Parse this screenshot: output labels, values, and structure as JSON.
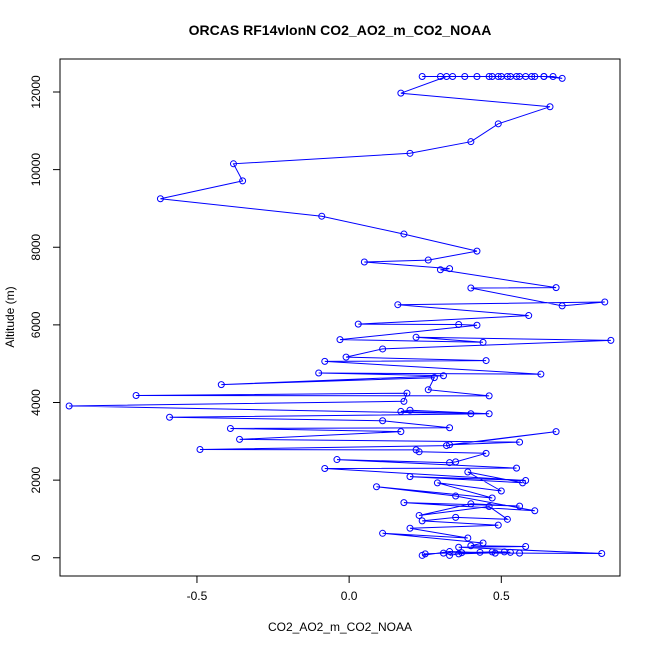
{
  "chart_data": {
    "type": "line",
    "title": "ORCAS RF14vlonN CO2_AO2_m_CO2_NOAA",
    "xlabel": "CO2_AO2_m_CO2_NOAA",
    "ylabel": "Altitude (m)",
    "xlim": [
      -0.95,
      0.89
    ],
    "ylim": [
      -470,
      12850
    ],
    "xticks": [
      -0.5,
      0.0,
      0.5
    ],
    "xtick_labels": [
      "-0.5",
      "0.0",
      "0.5"
    ],
    "yticks": [
      0,
      2000,
      4000,
      6000,
      8000,
      10000,
      12000
    ],
    "ytick_labels": [
      "0",
      "2000",
      "4000",
      "6000",
      "8000",
      "10000",
      "12000"
    ],
    "grid": false,
    "legend": "none",
    "colors": {
      "series": "#0000ff",
      "axes": "#000000"
    },
    "series": [
      {
        "points": [
          [
            0.24,
            12400
          ],
          [
            0.3,
            12400
          ],
          [
            0.34,
            12400
          ],
          [
            0.38,
            12400
          ],
          [
            0.42,
            12400
          ],
          [
            0.46,
            12400
          ],
          [
            0.49,
            12400
          ],
          [
            0.52,
            12400
          ],
          [
            0.55,
            12400
          ],
          [
            0.58,
            12400
          ],
          [
            0.61,
            12400
          ],
          [
            0.64,
            12400
          ],
          [
            0.67,
            12400
          ],
          [
            0.7,
            12350
          ],
          [
            0.64,
            12400
          ],
          [
            0.6,
            12400
          ],
          [
            0.56,
            12400
          ],
          [
            0.53,
            12400
          ],
          [
            0.5,
            12400
          ],
          [
            0.47,
            12400
          ],
          [
            0.32,
            12400
          ],
          [
            0.17,
            11970
          ],
          [
            0.66,
            11620
          ],
          [
            0.49,
            11180
          ],
          [
            0.4,
            10720
          ],
          [
            0.2,
            10420
          ],
          [
            -0.38,
            10150
          ],
          [
            -0.35,
            9710
          ],
          [
            -0.62,
            9250
          ],
          [
            -0.09,
            8800
          ],
          [
            0.18,
            8340
          ],
          [
            0.42,
            7900
          ],
          [
            0.26,
            7670
          ],
          [
            0.05,
            7620
          ],
          [
            0.33,
            7450
          ],
          [
            0.3,
            7420
          ],
          [
            0.68,
            6960
          ],
          [
            0.4,
            6950
          ],
          [
            0.7,
            6490
          ],
          [
            0.84,
            6590
          ],
          [
            0.16,
            6520
          ],
          [
            0.59,
            6240
          ],
          [
            0.03,
            6020
          ],
          [
            0.36,
            6010
          ],
          [
            0.42,
            5990
          ],
          [
            -0.03,
            5620
          ],
          [
            0.44,
            5550
          ],
          [
            0.22,
            5680
          ],
          [
            0.86,
            5600
          ],
          [
            0.11,
            5380
          ],
          [
            -0.01,
            5170
          ],
          [
            0.45,
            5080
          ],
          [
            -0.08,
            5060
          ],
          [
            0.63,
            4730
          ],
          [
            -0.1,
            4760
          ],
          [
            0.31,
            4690
          ],
          [
            -0.42,
            4460
          ],
          [
            0.28,
            4640
          ],
          [
            0.26,
            4330
          ],
          [
            0.46,
            4170
          ],
          [
            -0.7,
            4180
          ],
          [
            0.19,
            4240
          ],
          [
            0.18,
            4030
          ],
          [
            -0.92,
            3910
          ],
          [
            0.4,
            3710
          ],
          [
            0.17,
            3770
          ],
          [
            0.2,
            3800
          ],
          [
            0.46,
            3710
          ],
          [
            -0.59,
            3620
          ],
          [
            0.11,
            3530
          ],
          [
            0.33,
            3350
          ],
          [
            -0.39,
            3330
          ],
          [
            0.17,
            3250
          ],
          [
            -0.36,
            3050
          ],
          [
            0.56,
            2980
          ],
          [
            0.33,
            2910
          ],
          [
            0.68,
            3250
          ],
          [
            0.32,
            2890
          ],
          [
            -0.49,
            2790
          ],
          [
            0.22,
            2780
          ],
          [
            0.23,
            2730
          ],
          [
            0.45,
            2690
          ],
          [
            0.35,
            2470
          ],
          [
            0.33,
            2450
          ],
          [
            -0.04,
            2530
          ],
          [
            0.55,
            2310
          ],
          [
            -0.08,
            2300
          ],
          [
            0.58,
            1990
          ],
          [
            0.2,
            2090
          ],
          [
            0.57,
            1930
          ],
          [
            0.39,
            2210
          ],
          [
            0.5,
            1720
          ],
          [
            0.29,
            1930
          ],
          [
            0.47,
            1540
          ],
          [
            0.09,
            1830
          ],
          [
            0.35,
            1590
          ],
          [
            0.61,
            1210
          ],
          [
            0.18,
            1420
          ],
          [
            0.56,
            1330
          ],
          [
            0.4,
            1390
          ],
          [
            0.23,
            1090
          ],
          [
            0.46,
            1320
          ],
          [
            0.52,
            990
          ],
          [
            0.35,
            1040
          ],
          [
            0.24,
            950
          ],
          [
            0.49,
            840
          ],
          [
            0.2,
            760
          ],
          [
            0.39,
            510
          ],
          [
            0.11,
            630
          ],
          [
            0.44,
            380
          ],
          [
            0.4,
            310
          ],
          [
            0.58,
            290
          ],
          [
            0.36,
            270
          ],
          [
            0.83,
            110
          ],
          [
            0.56,
            120
          ],
          [
            0.48,
            120
          ],
          [
            0.33,
            160
          ],
          [
            0.24,
            60
          ],
          [
            0.25,
            100
          ],
          [
            0.31,
            120
          ],
          [
            0.37,
            130
          ],
          [
            0.43,
            140
          ],
          [
            0.47,
            150
          ],
          [
            0.51,
            150
          ],
          [
            0.53,
            140
          ],
          [
            0.36,
            100
          ],
          [
            0.33,
            60
          ]
        ]
      }
    ]
  }
}
